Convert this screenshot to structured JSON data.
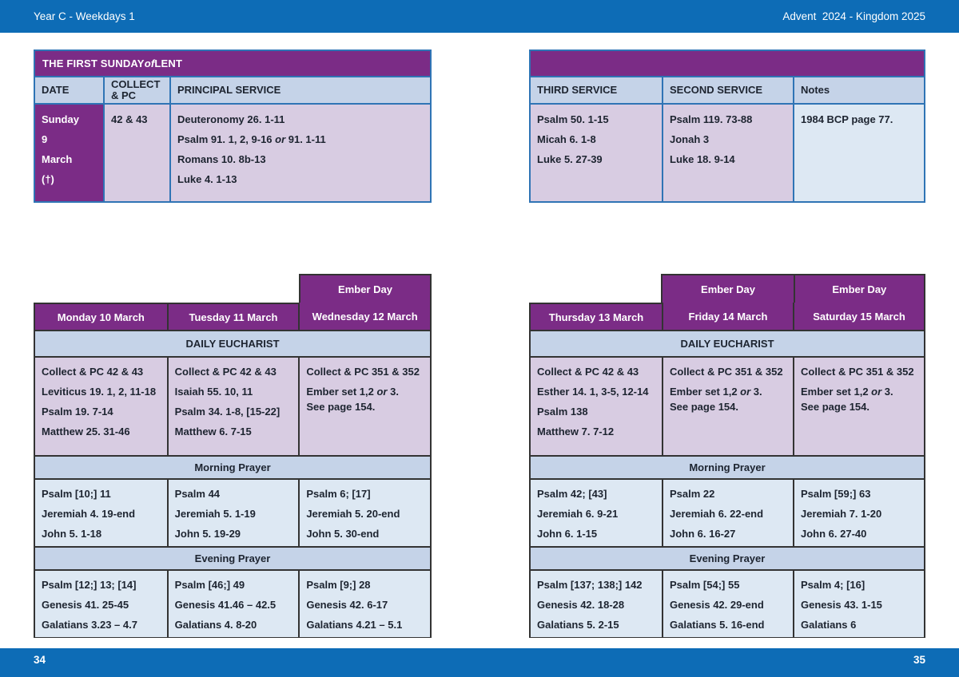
{
  "header": {
    "left": "Year C - Weekdays 1",
    "right": "Advent  2024 - Kingdom 2025"
  },
  "footer": {
    "left_page_number": "34",
    "right_page_number": "35"
  },
  "colors": {
    "bar_blue": "#0d6cb6",
    "purple": "#7b2c86",
    "lavender": "#d8cce2",
    "header_blue": "#c5d3e8",
    "pale_blue": "#dde8f3",
    "border_blue": "#2f74b5",
    "border_dark": "#333333"
  },
  "sunday": {
    "title": "THE FIRST SUNDAY of LENT",
    "left_columns": {
      "date": "DATE",
      "collect": "COLLECT\n& PC",
      "principal": "PRINCIPAL SERVICE"
    },
    "right_columns": {
      "third": "THIRD SERVICE",
      "second": "SECOND SERVICE",
      "notes": "Notes"
    },
    "date_lines": [
      "Sunday",
      "9",
      "March",
      "(†)"
    ],
    "collect_pc": [
      "42 & 43"
    ],
    "principal_service": [
      "Deuteronomy 26. 1-11",
      "Psalm 91. 1, 2, 9-16 or 91. 1-11",
      "Romans 10. 8b-13",
      "Luke 4. 1-13"
    ],
    "third_service": [
      "Psalm 50. 1-15",
      "Micah 6. 1-8",
      "Luke 5. 27-39"
    ],
    "second_service": [
      "Psalm 119. 73-88",
      "Jonah 3",
      "Luke 18. 9-14"
    ],
    "notes": [
      "1984 BCP page 77."
    ]
  },
  "weekdays": {
    "ember_label": "Ember Day",
    "section_labels": {
      "eucharist": "DAILY EUCHARIST",
      "morning": "Morning Prayer",
      "evening": "Evening Prayer"
    },
    "left": {
      "days": [
        {
          "label": "Monday 10 March",
          "ember": false,
          "eucharist": [
            "Collect & PC 42 & 43",
            "Leviticus 19. 1, 2, 11-18",
            "Psalm 19. 7-14",
            "Matthew 25. 31-46"
          ],
          "morning": [
            "Psalm [10;] 11",
            "Jeremiah 4. 19-end",
            "John 5. 1-18"
          ],
          "evening": [
            "Psalm [12;] 13; [14]",
            "Genesis 41. 25-45",
            "Galatians 3.23 – 4.7"
          ]
        },
        {
          "label": "Tuesday 11 March",
          "ember": false,
          "eucharist": [
            "Collect & PC 42 & 43",
            "Isaiah 55. 10, 11",
            "Psalm 34. 1-8, [15-22]",
            "Matthew 6. 7-15"
          ],
          "morning": [
            "Psalm 44",
            "Jeremiah 5. 1-19",
            "John 5. 19-29"
          ],
          "evening": [
            "Psalm [46;] 49",
            "Genesis 41.46 – 42.5",
            "Galatians 4. 8-20"
          ]
        },
        {
          "label": "Wednesday 12 March",
          "ember": true,
          "eucharist": [
            "Collect & PC 351 & 352",
            "Ember set 1,2 or 3.\nSee page 154."
          ],
          "morning": [
            "Psalm 6; [17]",
            "Jeremiah 5. 20-end",
            "John 5. 30-end"
          ],
          "evening": [
            "Psalm [9;] 28",
            "Genesis 42. 6-17",
            "Galatians 4.21 – 5.1"
          ]
        }
      ]
    },
    "right": {
      "days": [
        {
          "label": "Thursday 13 March",
          "ember": false,
          "eucharist": [
            "Collect & PC 42 & 43",
            "Esther 14. 1, 3-5, 12-14",
            "Psalm 138",
            "Matthew 7. 7-12"
          ],
          "morning": [
            "Psalm 42; [43]",
            "Jeremiah 6. 9-21",
            "John 6. 1-15"
          ],
          "evening": [
            "Psalm [137; 138;] 142",
            "Genesis 42. 18-28",
            "Galatians 5. 2-15"
          ]
        },
        {
          "label": "Friday 14 March",
          "ember": true,
          "eucharist": [
            "Collect & PC 351 & 352",
            "Ember set 1,2 or 3.\nSee page 154."
          ],
          "morning": [
            "Psalm 22",
            "Jeremiah 6. 22-end",
            "John 6. 16-27"
          ],
          "evening": [
            "Psalm [54;] 55",
            "Genesis 42. 29-end",
            "Galatians 5. 16-end"
          ]
        },
        {
          "label": "Saturday 15 March",
          "ember": true,
          "eucharist": [
            "Collect & PC 351 & 352",
            "Ember set 1,2 or 3.\nSee page 154."
          ],
          "morning": [
            "Psalm [59;] 63",
            "Jeremiah 7. 1-20",
            "John 6. 27-40"
          ],
          "evening": [
            "Psalm 4; [16]",
            "Genesis 43. 1-15",
            "Galatians 6"
          ]
        }
      ]
    }
  }
}
